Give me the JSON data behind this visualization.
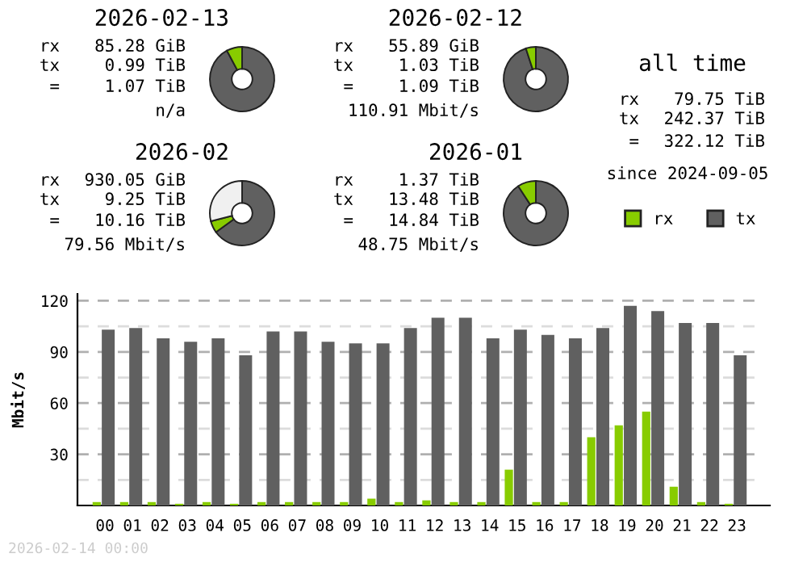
{
  "chart_data": [
    {
      "type": "donut",
      "title": "2026-02-13",
      "categories": [
        null,
        null
      ],
      "values": [
        92.2,
        7.8
      ],
      "colors": [
        "#606060",
        "#88cc00"
      ],
      "annotations": [
        "rx",
        "85.28 GiB",
        "tx",
        "0.99 TiB",
        "=",
        "1.07 TiB",
        "n/a"
      ]
    },
    {
      "type": "donut",
      "title": "2026-02-12",
      "categories": [
        null,
        null
      ],
      "values": [
        95.0,
        5.0
      ],
      "colors": [
        "#606060",
        "#88cc00"
      ],
      "annotations": [
        "rx",
        "55.89 GiB",
        "tx",
        "1.03 TiB",
        "=",
        "1.09 TiB",
        "110.91 Mbit/s"
      ]
    },
    {
      "type": "other",
      "title": "all time",
      "annotations": [
        "rx",
        "79.75 TiB",
        "tx",
        "242.37 TiB",
        "=",
        "322.12 TiB",
        "since 2024-09-05"
      ]
    },
    {
      "type": "donut",
      "title": "2026-02",
      "categories": [
        null,
        null,
        null
      ],
      "values": [
        65,
        6,
        29
      ],
      "colors": [
        "#606060",
        "#88cc00",
        "#f0f0f0"
      ],
      "annotations": [
        "rx",
        "930.05 GiB",
        "tx",
        "9.25 TiB",
        "=",
        "10.16 TiB",
        "79.56 Mbit/s"
      ]
    },
    {
      "type": "donut",
      "title": "2026-01",
      "categories": [
        null,
        null
      ],
      "values": [
        90.8,
        9.2
      ],
      "colors": [
        "#606060",
        "#88cc00"
      ],
      "annotations": [
        "rx",
        "1.37 TiB",
        "tx",
        "13.48 TiB",
        "=",
        "14.84 TiB",
        "48.75 Mbit/s"
      ]
    },
    {
      "type": "bar",
      "ylabel": "Mbit/s",
      "categories": [
        "00",
        "01",
        "02",
        "03",
        "04",
        "05",
        "06",
        "07",
        "08",
        "09",
        "10",
        "11",
        "12",
        "13",
        "14",
        "15",
        "16",
        "17",
        "18",
        "19",
        "20",
        "21",
        "22",
        "23"
      ],
      "series": [
        {
          "name": "rx",
          "color": "#88cc00",
          "values": [
            2,
            2,
            2,
            1,
            2,
            1,
            2,
            2,
            2,
            2,
            4,
            2,
            3,
            2,
            2,
            21,
            2,
            2,
            40,
            47,
            55,
            11,
            2,
            1
          ]
        },
        {
          "name": "tx",
          "color": "#606060",
          "values": [
            103,
            104,
            98,
            96,
            98,
            88,
            102,
            102,
            96,
            95,
            95,
            104,
            110,
            110,
            98,
            103,
            100,
            98,
            104,
            117,
            114,
            107,
            107,
            88
          ]
        }
      ],
      "ylim": [
        0,
        124
      ],
      "yticks": [
        {
          "value": 15,
          "label": null
        },
        30,
        {
          "value": 45,
          "label": null
        },
        60,
        {
          "value": 75,
          "label": null
        },
        90,
        {
          "value": 105,
          "label": null
        },
        120
      ],
      "grid": "y",
      "legend": "top right",
      "annotations": [
        "2026-02-14 00:00"
      ]
    }
  ]
}
